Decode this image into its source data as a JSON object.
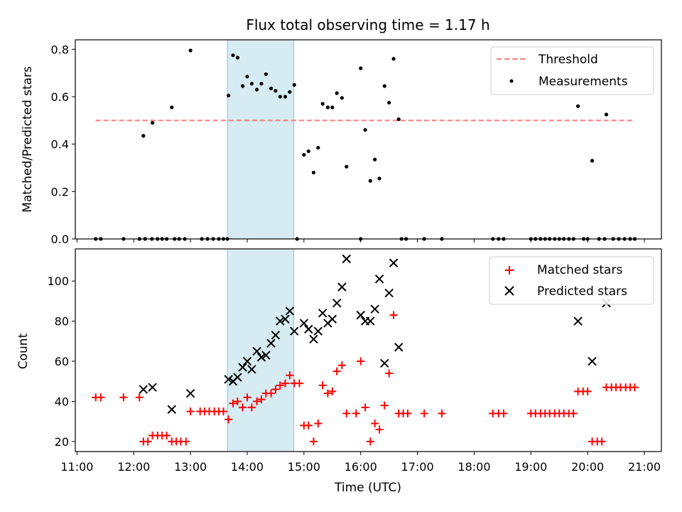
{
  "chart_data": [
    {
      "type": "scatter",
      "title": "Flux total observing time = 1.17 h",
      "xlabel": "",
      "ylabel": "Matched/Predicted stars",
      "xlim_hours": [
        10.97,
        21.3
      ],
      "ylim": [
        0,
        0.84
      ],
      "yticks": [
        "0.0",
        "0.2",
        "0.4",
        "0.6",
        "0.8"
      ],
      "highlight_span_hours": [
        13.65,
        14.82
      ],
      "legend_position": "top-right",
      "threshold": {
        "name": "Threshold",
        "value": 0.5,
        "x_range_hours": [
          11.33,
          20.83
        ],
        "color": "#ff7b7b",
        "style": "dashed"
      },
      "series": [
        {
          "name": "Measurements",
          "color": "#000000",
          "marker": "dot",
          "points": [
            [
              11.33,
              0
            ],
            [
              11.42,
              0
            ],
            [
              11.82,
              0
            ],
            [
              12.1,
              0
            ],
            [
              12.2,
              0
            ],
            [
              12.32,
              0
            ],
            [
              12.42,
              0
            ],
            [
              12.5,
              0
            ],
            [
              12.58,
              0
            ],
            [
              12.72,
              0
            ],
            [
              12.8,
              0
            ],
            [
              12.9,
              0
            ],
            [
              13.2,
              0
            ],
            [
              13.3,
              0
            ],
            [
              13.4,
              0
            ],
            [
              13.5,
              0
            ],
            [
              13.58,
              0
            ],
            [
              13.65,
              0
            ],
            [
              14.88,
              0
            ],
            [
              16.0,
              0
            ],
            [
              16.72,
              0
            ],
            [
              16.8,
              0
            ],
            [
              17.12,
              0
            ],
            [
              17.43,
              0
            ],
            [
              18.33,
              0
            ],
            [
              18.43,
              0
            ],
            [
              18.52,
              0
            ],
            [
              19.0,
              0
            ],
            [
              19.08,
              0
            ],
            [
              19.17,
              0
            ],
            [
              19.25,
              0
            ],
            [
              19.33,
              0
            ],
            [
              19.42,
              0
            ],
            [
              19.5,
              0
            ],
            [
              19.58,
              0
            ],
            [
              19.67,
              0
            ],
            [
              19.75,
              0
            ],
            [
              19.93,
              0
            ],
            [
              20.0,
              0
            ],
            [
              20.2,
              0
            ],
            [
              20.3,
              0
            ],
            [
              20.45,
              0
            ],
            [
              20.55,
              0
            ],
            [
              20.65,
              0
            ],
            [
              20.75,
              0
            ],
            [
              20.83,
              0
            ],
            [
              12.17,
              0.435
            ],
            [
              12.33,
              0.49
            ],
            [
              12.67,
              0.555
            ],
            [
              13.0,
              0.795
            ],
            [
              13.67,
              0.605
            ],
            [
              13.75,
              0.775
            ],
            [
              13.83,
              0.765
            ],
            [
              13.92,
              0.645
            ],
            [
              14.0,
              0.685
            ],
            [
              14.08,
              0.655
            ],
            [
              14.17,
              0.63
            ],
            [
              14.25,
              0.655
            ],
            [
              14.33,
              0.695
            ],
            [
              14.42,
              0.635
            ],
            [
              14.5,
              0.625
            ],
            [
              14.58,
              0.6
            ],
            [
              14.67,
              0.6
            ],
            [
              14.75,
              0.62
            ],
            [
              14.83,
              0.65
            ],
            [
              15.0,
              0.355
            ],
            [
              15.08,
              0.37
            ],
            [
              15.17,
              0.28
            ],
            [
              15.25,
              0.385
            ],
            [
              15.33,
              0.57
            ],
            [
              15.42,
              0.555
            ],
            [
              15.5,
              0.555
            ],
            [
              15.58,
              0.615
            ],
            [
              15.67,
              0.595
            ],
            [
              15.75,
              0.305
            ],
            [
              16.0,
              0.72
            ],
            [
              16.08,
              0.46
            ],
            [
              16.17,
              0.245
            ],
            [
              16.25,
              0.335
            ],
            [
              16.33,
              0.255
            ],
            [
              16.42,
              0.645
            ],
            [
              16.5,
              0.575
            ],
            [
              16.58,
              0.76
            ],
            [
              16.67,
              0.505
            ],
            [
              19.83,
              0.56
            ],
            [
              20.08,
              0.33
            ],
            [
              20.33,
              0.525
            ]
          ]
        }
      ]
    },
    {
      "type": "scatter",
      "title": "",
      "xlabel": "Time (UTC)",
      "ylabel": "Count",
      "xlim_hours": [
        10.97,
        21.3
      ],
      "ylim": [
        15,
        116
      ],
      "yticks": [
        "20",
        "40",
        "60",
        "80",
        "100"
      ],
      "xticks": [
        "11:00",
        "12:00",
        "13:00",
        "14:00",
        "15:00",
        "16:00",
        "17:00",
        "18:00",
        "19:00",
        "20:00",
        "21:00"
      ],
      "highlight_span_hours": [
        13.65,
        14.82
      ],
      "legend_position": "top-right",
      "series": [
        {
          "name": "Matched stars",
          "color": "#ff0000",
          "marker": "plus",
          "points": [
            [
              11.33,
              42
            ],
            [
              11.42,
              42
            ],
            [
              11.82,
              42
            ],
            [
              12.1,
              42
            ],
            [
              12.17,
              20
            ],
            [
              12.25,
              20
            ],
            [
              12.33,
              23
            ],
            [
              12.42,
              23
            ],
            [
              12.5,
              23
            ],
            [
              12.58,
              23
            ],
            [
              12.67,
              20
            ],
            [
              12.75,
              20
            ],
            [
              12.83,
              20
            ],
            [
              12.92,
              20
            ],
            [
              13.0,
              35
            ],
            [
              13.17,
              35
            ],
            [
              13.25,
              35
            ],
            [
              13.33,
              35
            ],
            [
              13.42,
              35
            ],
            [
              13.5,
              35
            ],
            [
              13.58,
              35
            ],
            [
              13.67,
              31
            ],
            [
              13.75,
              39
            ],
            [
              13.83,
              40
            ],
            [
              13.92,
              37
            ],
            [
              14.0,
              42
            ],
            [
              14.08,
              37
            ],
            [
              14.17,
              40
            ],
            [
              14.25,
              41
            ],
            [
              14.33,
              44
            ],
            [
              14.42,
              44
            ],
            [
              14.5,
              46
            ],
            [
              14.58,
              48
            ],
            [
              14.67,
              49
            ],
            [
              14.75,
              53
            ],
            [
              14.83,
              49
            ],
            [
              14.92,
              49
            ],
            [
              15.0,
              28
            ],
            [
              15.08,
              28
            ],
            [
              15.17,
              20
            ],
            [
              15.25,
              29
            ],
            [
              15.33,
              48
            ],
            [
              15.42,
              44
            ],
            [
              15.5,
              45
            ],
            [
              15.58,
              55
            ],
            [
              15.67,
              58
            ],
            [
              15.75,
              34
            ],
            [
              15.92,
              34
            ],
            [
              16.0,
              60
            ],
            [
              16.08,
              37
            ],
            [
              16.17,
              20
            ],
            [
              16.25,
              29
            ],
            [
              16.33,
              26
            ],
            [
              16.42,
              38
            ],
            [
              16.5,
              54
            ],
            [
              16.58,
              83
            ],
            [
              16.67,
              34
            ],
            [
              16.75,
              34
            ],
            [
              16.83,
              34
            ],
            [
              17.12,
              34
            ],
            [
              17.43,
              34
            ],
            [
              18.33,
              34
            ],
            [
              18.43,
              34
            ],
            [
              18.52,
              34
            ],
            [
              19.0,
              34
            ],
            [
              19.08,
              34
            ],
            [
              19.17,
              34
            ],
            [
              19.25,
              34
            ],
            [
              19.33,
              34
            ],
            [
              19.42,
              34
            ],
            [
              19.5,
              34
            ],
            [
              19.58,
              34
            ],
            [
              19.67,
              34
            ],
            [
              19.75,
              34
            ],
            [
              19.83,
              45
            ],
            [
              19.92,
              45
            ],
            [
              20.0,
              45
            ],
            [
              20.08,
              20
            ],
            [
              20.17,
              20
            ],
            [
              20.25,
              20
            ],
            [
              20.33,
              47
            ],
            [
              20.42,
              47
            ],
            [
              20.5,
              47
            ],
            [
              20.58,
              47
            ],
            [
              20.67,
              47
            ],
            [
              20.75,
              47
            ],
            [
              20.83,
              47
            ]
          ]
        },
        {
          "name": "Predicted stars",
          "color": "#000000",
          "marker": "x",
          "points": [
            [
              12.17,
              46
            ],
            [
              12.33,
              47
            ],
            [
              12.67,
              36
            ],
            [
              13.0,
              44
            ],
            [
              13.67,
              51
            ],
            [
              13.75,
              50
            ],
            [
              13.83,
              52
            ],
            [
              13.92,
              57
            ],
            [
              14.0,
              60
            ],
            [
              14.08,
              56
            ],
            [
              14.17,
              65
            ],
            [
              14.25,
              62
            ],
            [
              14.33,
              63
            ],
            [
              14.42,
              69
            ],
            [
              14.5,
              73
            ],
            [
              14.58,
              80
            ],
            [
              14.67,
              81
            ],
            [
              14.75,
              85
            ],
            [
              14.83,
              75
            ],
            [
              15.0,
              79
            ],
            [
              15.08,
              76
            ],
            [
              15.17,
              71
            ],
            [
              15.25,
              75
            ],
            [
              15.33,
              84
            ],
            [
              15.42,
              79
            ],
            [
              15.5,
              81
            ],
            [
              15.58,
              89
            ],
            [
              15.67,
              97
            ],
            [
              15.75,
              111
            ],
            [
              16.0,
              83
            ],
            [
              16.08,
              80
            ],
            [
              16.17,
              80
            ],
            [
              16.25,
              86
            ],
            [
              16.33,
              101
            ],
            [
              16.42,
              59
            ],
            [
              16.5,
              94
            ],
            [
              16.58,
              109
            ],
            [
              16.67,
              67
            ],
            [
              19.83,
              80
            ],
            [
              20.08,
              60
            ],
            [
              20.33,
              89
            ]
          ]
        }
      ]
    }
  ]
}
